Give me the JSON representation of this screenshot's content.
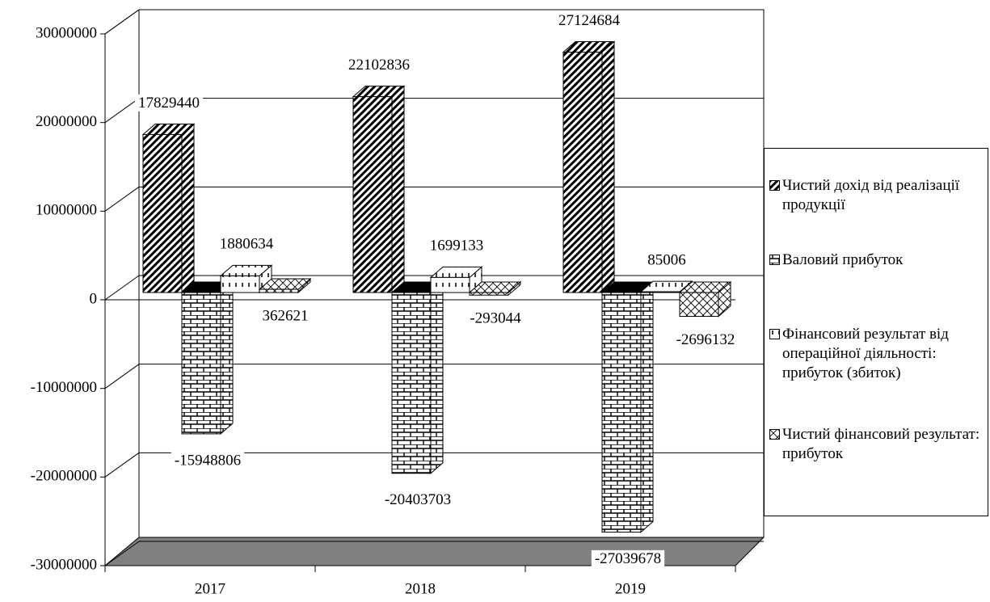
{
  "chart_data": {
    "type": "bar3d",
    "categories": [
      "2017",
      "2018",
      "2019"
    ],
    "series": [
      {
        "name": "Чистий дохід від реалізації продукції",
        "values": [
          17829440,
          22102836,
          27124684
        ]
      },
      {
        "name": "Валовий прибуток",
        "values": [
          -15948806,
          -20403703,
          -27039678
        ]
      },
      {
        "name": "Фінансовий результат від операційної діяльності: прибуток (збиток)",
        "values": [
          1880634,
          1699133,
          85006
        ]
      },
      {
        "name": "Чистий фінансовий результат: прибуток",
        "values": [
          362621,
          -293044,
          -2696132
        ]
      }
    ],
    "ylim": [
      -30000000,
      30000000
    ],
    "yticks": [
      -30000000,
      -20000000,
      -10000000,
      0,
      10000000,
      20000000,
      30000000
    ],
    "grid": true,
    "legend": "right"
  }
}
